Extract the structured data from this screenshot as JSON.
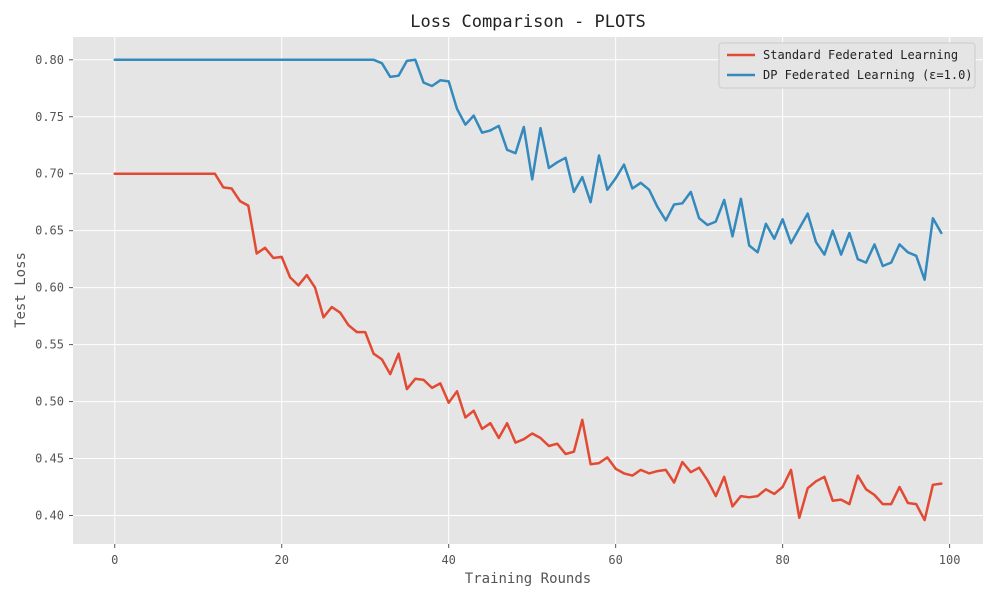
{
  "chart_data": {
    "type": "line",
    "title": "Loss Comparison - PLOTS",
    "xlabel": "Training Rounds",
    "ylabel": "Test Loss",
    "xlim": [
      -5,
      104
    ],
    "ylim": [
      0.375,
      0.82
    ],
    "xticks": [
      0,
      20,
      40,
      60,
      80,
      100
    ],
    "yticks": [
      0.4,
      0.45,
      0.5,
      0.55,
      0.6,
      0.65,
      0.7,
      0.75,
      0.8
    ],
    "grid": true,
    "legend": "top-right",
    "series": [
      {
        "name": "Standard Federated Learning",
        "color": "#E24A33",
        "x": [
          0,
          1,
          2,
          3,
          4,
          5,
          6,
          7,
          8,
          9,
          10,
          11,
          12,
          13,
          14,
          15,
          16,
          17,
          18,
          19,
          20,
          21,
          22,
          23,
          24,
          25,
          26,
          27,
          28,
          29,
          30,
          31,
          32,
          33,
          34,
          35,
          36,
          37,
          38,
          39,
          40,
          41,
          42,
          43,
          44,
          45,
          46,
          47,
          48,
          49,
          50,
          51,
          52,
          53,
          54,
          55,
          56,
          57,
          58,
          59,
          60,
          61,
          62,
          63,
          64,
          65,
          66,
          67,
          68,
          69,
          70,
          71,
          72,
          73,
          74,
          75,
          76,
          77,
          78,
          79,
          80,
          81,
          82,
          83,
          84,
          85,
          86,
          87,
          88,
          89,
          90,
          91,
          92,
          93,
          94,
          95,
          96,
          97,
          98,
          99
        ],
        "values": [
          0.7,
          0.7,
          0.7,
          0.7,
          0.7,
          0.7,
          0.7,
          0.7,
          0.7,
          0.7,
          0.7,
          0.7,
          0.7,
          0.688,
          0.687,
          0.676,
          0.672,
          0.63,
          0.635,
          0.626,
          0.627,
          0.609,
          0.602,
          0.611,
          0.6,
          0.574,
          0.583,
          0.578,
          0.567,
          0.561,
          0.561,
          0.542,
          0.537,
          0.524,
          0.542,
          0.511,
          0.52,
          0.519,
          0.512,
          0.516,
          0.499,
          0.509,
          0.486,
          0.492,
          0.476,
          0.481,
          0.468,
          0.481,
          0.464,
          0.467,
          0.472,
          0.468,
          0.461,
          0.463,
          0.454,
          0.456,
          0.484,
          0.445,
          0.446,
          0.451,
          0.441,
          0.437,
          0.435,
          0.44,
          0.437,
          0.439,
          0.44,
          0.429,
          0.447,
          0.438,
          0.442,
          0.431,
          0.417,
          0.434,
          0.408,
          0.417,
          0.416,
          0.417,
          0.423,
          0.419,
          0.425,
          0.44,
          0.398,
          0.424,
          0.43,
          0.434,
          0.413,
          0.414,
          0.41,
          0.435,
          0.423,
          0.418,
          0.41,
          0.41,
          0.425,
          0.411,
          0.41,
          0.396,
          0.427,
          0.428
        ]
      },
      {
        "name": "DP Federated Learning (ε=1.0)",
        "color": "#348ABD",
        "x": [
          0,
          1,
          2,
          3,
          4,
          5,
          6,
          7,
          8,
          9,
          10,
          11,
          12,
          13,
          14,
          15,
          16,
          17,
          18,
          19,
          20,
          21,
          22,
          23,
          24,
          25,
          26,
          27,
          28,
          29,
          30,
          31,
          32,
          33,
          34,
          35,
          36,
          37,
          38,
          39,
          40,
          41,
          42,
          43,
          44,
          45,
          46,
          47,
          48,
          49,
          50,
          51,
          52,
          53,
          54,
          55,
          56,
          57,
          58,
          59,
          60,
          61,
          62,
          63,
          64,
          65,
          66,
          67,
          68,
          69,
          70,
          71,
          72,
          73,
          74,
          75,
          76,
          77,
          78,
          79,
          80,
          81,
          82,
          83,
          84,
          85,
          86,
          87,
          88,
          89,
          90,
          91,
          92,
          93,
          94,
          95,
          96,
          97,
          98,
          99
        ],
        "values": [
          0.8,
          0.8,
          0.8,
          0.8,
          0.8,
          0.8,
          0.8,
          0.8,
          0.8,
          0.8,
          0.8,
          0.8,
          0.8,
          0.8,
          0.8,
          0.8,
          0.8,
          0.8,
          0.8,
          0.8,
          0.8,
          0.8,
          0.8,
          0.8,
          0.8,
          0.8,
          0.8,
          0.8,
          0.8,
          0.8,
          0.8,
          0.8,
          0.797,
          0.785,
          0.786,
          0.799,
          0.8,
          0.78,
          0.777,
          0.782,
          0.781,
          0.757,
          0.743,
          0.751,
          0.736,
          0.738,
          0.742,
          0.721,
          0.718,
          0.741,
          0.695,
          0.74,
          0.705,
          0.71,
          0.714,
          0.684,
          0.697,
          0.675,
          0.716,
          0.686,
          0.696,
          0.708,
          0.687,
          0.692,
          0.686,
          0.671,
          0.659,
          0.673,
          0.674,
          0.684,
          0.661,
          0.655,
          0.658,
          0.677,
          0.645,
          0.678,
          0.637,
          0.631,
          0.656,
          0.643,
          0.66,
          0.639,
          0.652,
          0.665,
          0.64,
          0.629,
          0.65,
          0.629,
          0.648,
          0.625,
          0.622,
          0.638,
          0.619,
          0.622,
          0.638,
          0.631,
          0.628,
          0.607,
          0.661,
          0.648
        ]
      }
    ]
  }
}
